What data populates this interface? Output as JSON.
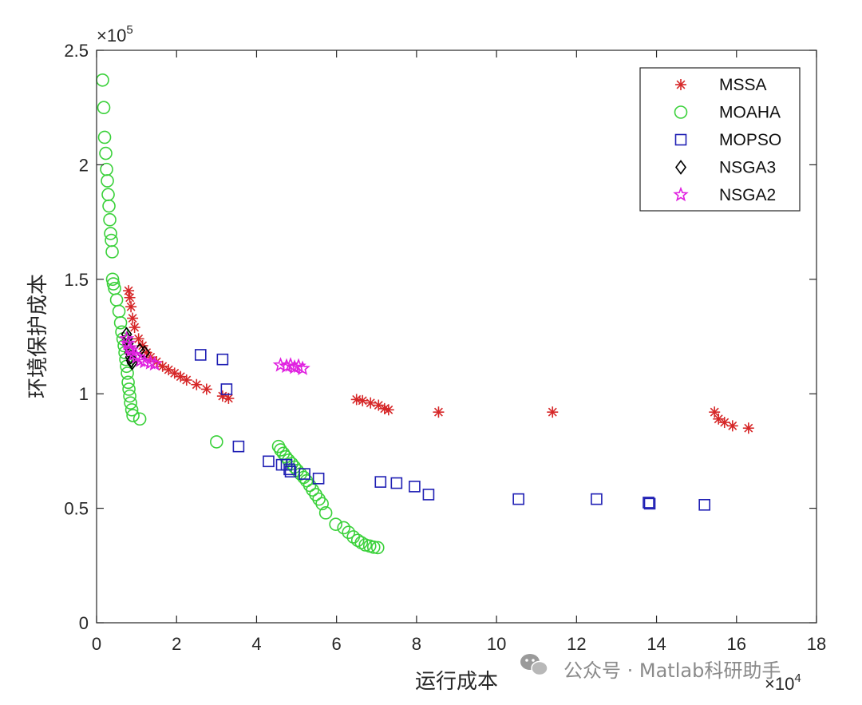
{
  "chart_data": {
    "type": "scatter",
    "xlabel": "运行成本",
    "ylabel": "环境保护成本",
    "x_exponent_label": "×10",
    "x_exponent": "4",
    "y_exponent_label": "×10",
    "y_exponent": "5",
    "xlim": [
      0,
      180000
    ],
    "ylim": [
      0,
      250000
    ],
    "x_ticks": [
      0,
      20000,
      40000,
      60000,
      80000,
      100000,
      120000,
      140000,
      160000,
      180000
    ],
    "x_tick_labels": [
      "0",
      "2",
      "4",
      "6",
      "8",
      "10",
      "12",
      "14",
      "16",
      "18"
    ],
    "y_ticks": [
      0,
      50000,
      100000,
      150000,
      200000,
      250000
    ],
    "y_tick_labels": [
      "0",
      "0.5",
      "1",
      "1.5",
      "2",
      "2.5"
    ],
    "grid": false,
    "legend_position": "top-right",
    "series": [
      {
        "name": "MSSA",
        "marker": "asterisk",
        "color": "#d62728",
        "points": [
          [
            8000,
            145000
          ],
          [
            8300,
            142000
          ],
          [
            8600,
            138000
          ],
          [
            9000,
            133000
          ],
          [
            9500,
            129000
          ],
          [
            10500,
            124000
          ],
          [
            11500,
            121000
          ],
          [
            12500,
            118000
          ],
          [
            13500,
            116000
          ],
          [
            15000,
            114000
          ],
          [
            16500,
            112000
          ],
          [
            18000,
            110500
          ],
          [
            19500,
            109000
          ],
          [
            21000,
            107500
          ],
          [
            22500,
            106000
          ],
          [
            25000,
            104000
          ],
          [
            27500,
            102000
          ],
          [
            31500,
            99000
          ],
          [
            33000,
            98000
          ],
          [
            65000,
            97500
          ],
          [
            66500,
            97000
          ],
          [
            68500,
            96000
          ],
          [
            70500,
            95000
          ],
          [
            72000,
            93500
          ],
          [
            73000,
            93000
          ],
          [
            85500,
            92000
          ],
          [
            114000,
            92000
          ],
          [
            154500,
            92000
          ],
          [
            155500,
            89000
          ],
          [
            157000,
            87500
          ],
          [
            159000,
            86000
          ],
          [
            163000,
            85000
          ]
        ]
      },
      {
        "name": "MOAHA",
        "marker": "circle",
        "color": "#3ad13a",
        "points": [
          [
            1500,
            237000
          ],
          [
            1800,
            225000
          ],
          [
            2000,
            212000
          ],
          [
            2300,
            205000
          ],
          [
            2500,
            198000
          ],
          [
            2700,
            193000
          ],
          [
            2900,
            187000
          ],
          [
            3100,
            182000
          ],
          [
            3300,
            176000
          ],
          [
            3500,
            170000
          ],
          [
            3700,
            167000
          ],
          [
            3900,
            162000
          ],
          [
            4000,
            150000
          ],
          [
            4200,
            148000
          ],
          [
            4500,
            146000
          ],
          [
            5000,
            141000
          ],
          [
            5600,
            136000
          ],
          [
            6000,
            131000
          ],
          [
            6300,
            127000
          ],
          [
            6600,
            124000
          ],
          [
            6900,
            121000
          ],
          [
            7100,
            118000
          ],
          [
            7300,
            115000
          ],
          [
            7500,
            112000
          ],
          [
            7700,
            109000
          ],
          [
            7900,
            105000
          ],
          [
            8100,
            102000
          ],
          [
            8300,
            99000
          ],
          [
            8500,
            96000
          ],
          [
            8800,
            93000
          ],
          [
            9100,
            90500
          ],
          [
            10800,
            89000
          ],
          [
            30000,
            79000
          ],
          [
            45500,
            77000
          ],
          [
            46000,
            75500
          ],
          [
            46700,
            74000
          ],
          [
            47300,
            72500
          ],
          [
            48000,
            71000
          ],
          [
            48800,
            69500
          ],
          [
            49500,
            68000
          ],
          [
            50200,
            66500
          ],
          [
            51000,
            65000
          ],
          [
            51800,
            63500
          ],
          [
            52500,
            62000
          ],
          [
            53300,
            60000
          ],
          [
            54000,
            58000
          ],
          [
            54800,
            56000
          ],
          [
            55600,
            54000
          ],
          [
            56400,
            52000
          ],
          [
            57300,
            48000
          ],
          [
            59800,
            43000
          ],
          [
            61800,
            41500
          ],
          [
            63000,
            39500
          ],
          [
            64200,
            37500
          ],
          [
            65300,
            36000
          ],
          [
            66200,
            35000
          ],
          [
            67200,
            34000
          ],
          [
            68300,
            33500
          ],
          [
            69300,
            33000
          ],
          [
            70300,
            32800
          ]
        ]
      },
      {
        "name": "MOPSO",
        "marker": "square",
        "color": "#1f1fb4",
        "points": [
          [
            26000,
            117000
          ],
          [
            31500,
            115000
          ],
          [
            32500,
            102000
          ],
          [
            35500,
            77000
          ],
          [
            43000,
            70500
          ],
          [
            46300,
            69000
          ],
          [
            47500,
            69000
          ],
          [
            48200,
            67000
          ],
          [
            48500,
            66000
          ],
          [
            52000,
            65000
          ],
          [
            55500,
            63000
          ],
          [
            71000,
            61500
          ],
          [
            75000,
            61000
          ],
          [
            79500,
            59500
          ],
          [
            83000,
            56000
          ],
          [
            105500,
            54000
          ],
          [
            125000,
            54000
          ],
          [
            138000,
            52500
          ],
          [
            138300,
            52000
          ],
          [
            152000,
            51500
          ]
        ]
      },
      {
        "name": "NSGA3",
        "marker": "diamond",
        "color": "#000000",
        "points": [
          [
            7500,
            126000
          ],
          [
            7700,
            124000
          ],
          [
            7900,
            122000
          ],
          [
            8100,
            120000
          ],
          [
            8300,
            118000
          ],
          [
            8500,
            116000
          ],
          [
            8700,
            114500
          ],
          [
            8900,
            113500
          ],
          [
            10800,
            119000
          ],
          [
            12000,
            118000
          ]
        ]
      },
      {
        "name": "NSGA2",
        "marker": "pentagram",
        "color": "#e020e0",
        "points": [
          [
            7500,
            124000
          ],
          [
            7800,
            122000
          ],
          [
            8200,
            120000
          ],
          [
            8600,
            119000
          ],
          [
            9200,
            117000
          ],
          [
            10000,
            116000
          ],
          [
            11000,
            114500
          ],
          [
            12000,
            114000
          ],
          [
            13500,
            113500
          ],
          [
            14500,
            113000
          ],
          [
            46000,
            112500
          ],
          [
            47500,
            112000
          ],
          [
            48500,
            112500
          ],
          [
            49500,
            111500
          ],
          [
            50500,
            112000
          ],
          [
            51500,
            111000
          ]
        ]
      }
    ]
  },
  "watermark": {
    "text": "公众号 · Matlab科研助手"
  }
}
